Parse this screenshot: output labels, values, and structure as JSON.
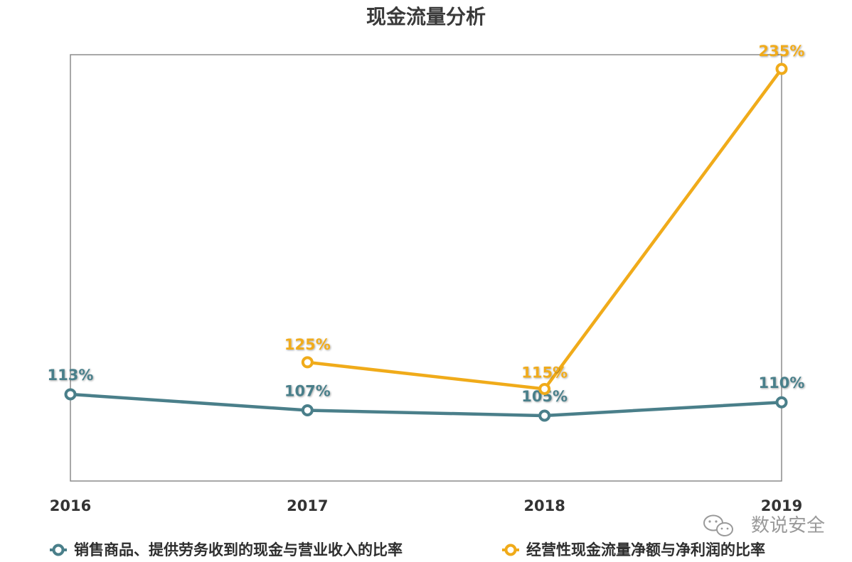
{
  "chart_data": {
    "type": "line",
    "title": "现金流量分析",
    "categories": [
      "2016",
      "2017",
      "2018",
      "2019"
    ],
    "ylim": [
      80,
      240
    ],
    "grid": false,
    "legend_position": "bottom",
    "series": [
      {
        "name": "销售商品、提供劳务收到的现金与营业收入的比率",
        "color": "#4a7f8a",
        "values": [
          113,
          107,
          105,
          110
        ],
        "labels": [
          "113%",
          "107%",
          "105%",
          "110%"
        ]
      },
      {
        "name": "经营性现金流量净额与净利润的比率",
        "color": "#f0ab1a",
        "values": [
          null,
          125,
          115,
          235
        ],
        "labels": [
          "",
          "125%",
          "115%",
          "235%"
        ]
      }
    ]
  },
  "watermark": {
    "text": "数说安全",
    "icon": "wechat-icon"
  }
}
